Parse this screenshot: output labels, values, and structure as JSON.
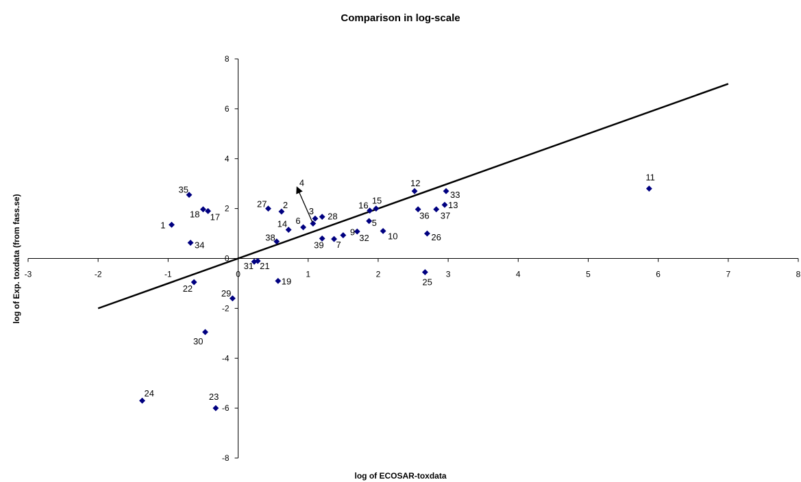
{
  "chart_data": {
    "type": "scatter",
    "title": "Comparison in log-scale",
    "xlabel": "log of ECOSAR-toxdata",
    "ylabel": "log of Exp. toxdata (from fass.se)",
    "xlim": [
      -3,
      8
    ],
    "ylim": [
      -8,
      8
    ],
    "x_ticks": [
      "-3",
      "-2",
      "-1",
      "0",
      "1",
      "2",
      "3",
      "4",
      "5",
      "6",
      "7",
      "8"
    ],
    "y_ticks": [
      "8",
      "6",
      "4",
      "2",
      "0",
      "-2",
      "-4",
      "-6",
      "-8"
    ],
    "marker_color": "#000080",
    "line_color": "#000000",
    "points": [
      {
        "label": "1",
        "x": -0.95,
        "y": 1.35
      },
      {
        "label": "2",
        "x": 0.62,
        "y": 1.88
      },
      {
        "label": "3",
        "x": 1.1,
        "y": 1.6
      },
      {
        "label": "5",
        "x": 1.87,
        "y": 1.5
      },
      {
        "label": "6",
        "x": 0.93,
        "y": 1.25
      },
      {
        "label": "7",
        "x": 1.37,
        "y": 0.78
      },
      {
        "label": "9",
        "x": 1.5,
        "y": 0.93
      },
      {
        "label": "10",
        "x": 2.07,
        "y": 1.1
      },
      {
        "label": "11",
        "x": 5.87,
        "y": 2.8
      },
      {
        "label": "12",
        "x": 2.52,
        "y": 2.7
      },
      {
        "label": "13",
        "x": 2.95,
        "y": 2.15
      },
      {
        "label": "14",
        "x": 0.72,
        "y": 1.15
      },
      {
        "label": "15",
        "x": 1.97,
        "y": 2.0
      },
      {
        "label": "16",
        "x": 1.88,
        "y": 1.92
      },
      {
        "label": "17",
        "x": -0.43,
        "y": 1.9
      },
      {
        "label": "18",
        "x": -0.5,
        "y": 1.97
      },
      {
        "label": "19",
        "x": 0.57,
        "y": -0.9
      },
      {
        "label": "21",
        "x": 0.28,
        "y": -0.1
      },
      {
        "label": "22",
        "x": -0.63,
        "y": -0.95
      },
      {
        "label": "23",
        "x": -0.32,
        "y": -6.0
      },
      {
        "label": "24",
        "x": -1.37,
        "y": -5.7
      },
      {
        "label": "25",
        "x": 2.67,
        "y": -0.55
      },
      {
        "label": "26",
        "x": 2.7,
        "y": 1.0
      },
      {
        "label": "27",
        "x": 0.43,
        "y": 2.0
      },
      {
        "label": "28",
        "x": 1.2,
        "y": 1.67
      },
      {
        "label": "29",
        "x": -0.08,
        "y": -1.6
      },
      {
        "label": "30",
        "x": -0.47,
        "y": -2.95
      },
      {
        "label": "31",
        "x": 0.23,
        "y": -0.13
      },
      {
        "label": "32",
        "x": 1.7,
        "y": 1.08
      },
      {
        "label": "33",
        "x": 2.97,
        "y": 2.7
      },
      {
        "label": "34",
        "x": -0.68,
        "y": 0.63
      },
      {
        "label": "35",
        "x": -0.7,
        "y": 2.55
      },
      {
        "label": "36",
        "x": 2.57,
        "y": 1.97
      },
      {
        "label": "37",
        "x": 2.83,
        "y": 1.97
      },
      {
        "label": "38",
        "x": 0.55,
        "y": 0.68
      },
      {
        "label": "39",
        "x": 1.2,
        "y": 0.8
      },
      {
        "label": "4",
        "x": 1.07,
        "y": 1.4
      }
    ],
    "trend_line": {
      "x": [
        -2,
        7
      ],
      "y": [
        -2,
        7
      ]
    }
  }
}
